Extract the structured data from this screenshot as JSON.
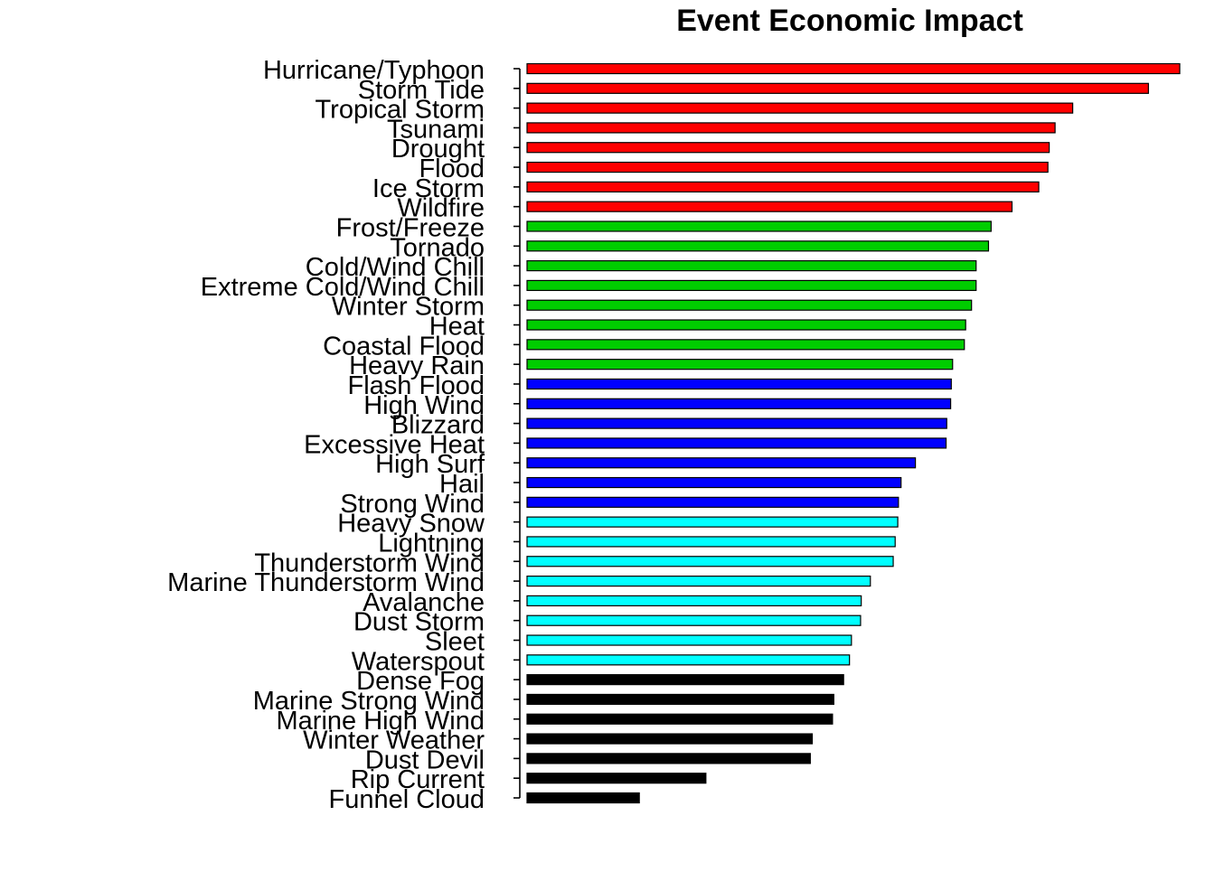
{
  "chart_data": {
    "type": "bar",
    "orientation": "horizontal",
    "title": "Event Economic Impact",
    "xlabel": "",
    "ylabel": "",
    "x_axis_visible": false,
    "grid": false,
    "legend": "none",
    "value_units": "relative (no x-axis printed)",
    "xlim": [
      0,
      100
    ],
    "categories": [
      "Hurricane/Typhoon",
      "Storm Tide",
      "Tropical Storm",
      "Tsunami",
      "Drought",
      "Flood",
      "Ice Storm",
      "Wildfire",
      "Frost/Freeze",
      "Tornado",
      "Cold/Wind Chill",
      "Extreme Cold/Wind Chill",
      "Winter Storm",
      "Heat",
      "Coastal Flood",
      "Heavy Rain",
      "Flash Flood",
      "High Wind",
      "Blizzard",
      "Excessive Heat",
      "High Surf",
      "Hail",
      "Strong Wind",
      "Heavy Snow",
      "Lightning",
      "Thunderstorm Wind",
      "Marine Thunderstorm Wind",
      "Avalanche",
      "Dust Storm",
      "Sleet",
      "Waterspout",
      "Dense Fog",
      "Marine Strong Wind",
      "Marine High Wind",
      "Winter Weather",
      "Dust Devil",
      "Rip Current",
      "Funnel Cloud"
    ],
    "values": [
      100,
      95.2,
      83.6,
      80.9,
      80.0,
      79.8,
      78.4,
      74.3,
      71.1,
      70.7,
      68.8,
      68.8,
      68.1,
      67.2,
      67.0,
      65.2,
      65.0,
      64.9,
      64.3,
      64.2,
      59.5,
      57.3,
      56.9,
      56.8,
      56.4,
      56.1,
      52.6,
      51.2,
      51.1,
      49.7,
      49.4,
      48.5,
      47.0,
      46.8,
      43.7,
      43.4,
      27.4,
      17.2
    ],
    "colors": [
      "#ff0000",
      "#ff0000",
      "#ff0000",
      "#ff0000",
      "#ff0000",
      "#ff0000",
      "#ff0000",
      "#ff0000",
      "#00cd00",
      "#00cd00",
      "#00cd00",
      "#00cd00",
      "#00cd00",
      "#00cd00",
      "#00cd00",
      "#00cd00",
      "#0000ff",
      "#0000ff",
      "#0000ff",
      "#0000ff",
      "#0000ff",
      "#0000ff",
      "#0000ff",
      "#00ffff",
      "#00ffff",
      "#00ffff",
      "#00ffff",
      "#00ffff",
      "#00ffff",
      "#00ffff",
      "#00ffff",
      "#000000",
      "#000000",
      "#000000",
      "#000000",
      "#000000",
      "#000000",
      "#000000"
    ]
  }
}
